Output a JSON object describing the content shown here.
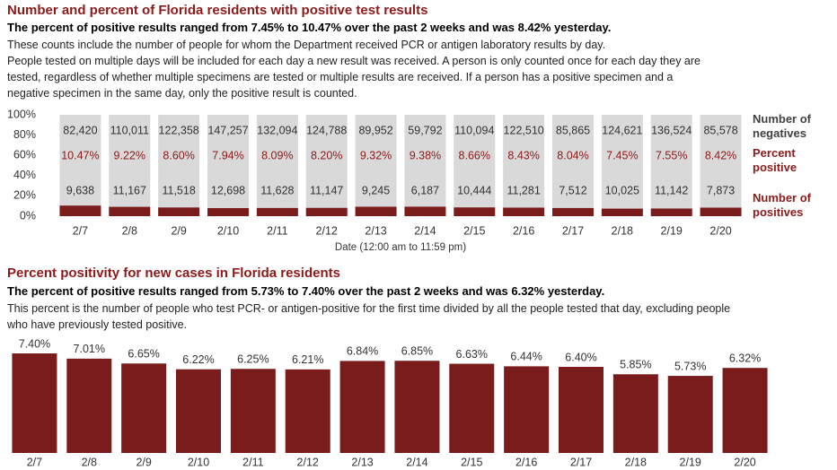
{
  "chart_data": [
    {
      "type": "stacked_percent_bar",
      "title": "Number and percent of Florida residents with positive test results",
      "subtitle": "The percent of positive results ranged from 7.45% to 10.47% over the past 2 weeks and was 8.42% yesterday.",
      "description": [
        "These counts include the number of people for whom the Department received PCR or antigen laboratory results by day.",
        "People tested on multiple days will be included for each day a new result was received. A person is only counted once for each day they are tested, regardless of whether multiple specimens are tested or multiple results are received. If a person has a positive specimen and a negative specimen in the same day, only the positive result is counted."
      ],
      "categories": [
        "2/7",
        "2/8",
        "2/9",
        "2/10",
        "2/11",
        "2/12",
        "2/13",
        "2/14",
        "2/15",
        "2/16",
        "2/17",
        "2/18",
        "2/19",
        "2/20"
      ],
      "x_label": "Date (12:00 am to 11:59 pm)",
      "ylim": [
        0,
        100
      ],
      "yticks": [
        {
          "value": 0,
          "label": "0%"
        },
        {
          "value": 20,
          "label": "20%"
        },
        {
          "value": 40,
          "label": "40%"
        },
        {
          "value": 60,
          "label": "60%"
        },
        {
          "value": 80,
          "label": "80%"
        },
        {
          "value": 100,
          "label": "100%"
        }
      ],
      "series": [
        {
          "name": "Number of negatives",
          "color": "#d9d9d9",
          "values": [
            82420,
            110011,
            122358,
            147257,
            132094,
            124788,
            89952,
            59792,
            110094,
            122510,
            85865,
            124621,
            136524,
            85578
          ],
          "value_labels": [
            "82,420",
            "110,011",
            "122,358",
            "147,257",
            "132,094",
            "124,788",
            "89,952",
            "59,792",
            "110,094",
            "122,510",
            "85,865",
            "124,621",
            "136,524",
            "85,578"
          ]
        },
        {
          "name": "Percent positive",
          "color": "#8b1a1a",
          "values": [
            10.47,
            9.22,
            8.6,
            7.94,
            8.09,
            8.2,
            9.32,
            9.38,
            8.66,
            8.43,
            8.04,
            7.45,
            7.55,
            8.42
          ],
          "value_labels": [
            "10.47%",
            "9.22%",
            "8.60%",
            "7.94%",
            "8.09%",
            "8.20%",
            "9.32%",
            "9.38%",
            "8.66%",
            "8.43%",
            "8.04%",
            "7.45%",
            "7.55%",
            "8.42%"
          ]
        },
        {
          "name": "Number of positives",
          "color": "#7b1c1c",
          "values": [
            9638,
            11167,
            11518,
            12698,
            11628,
            11147,
            9245,
            6187,
            10444,
            11281,
            7512,
            10025,
            11142,
            7873
          ],
          "value_labels": [
            "9,638",
            "11,167",
            "11,518",
            "12,698",
            "11,628",
            "11,147",
            "9,245",
            "6,187",
            "10,444",
            "11,281",
            "7,512",
            "10,025",
            "11,142",
            "7,873"
          ]
        }
      ]
    },
    {
      "type": "bar",
      "title": "Percent positivity for new cases in Florida residents",
      "subtitle": "The percent of positive results ranged from 5.73% to 7.40% over the past 2 weeks and was 6.32% yesterday.",
      "description": [
        "This percent is the number of people who test PCR- or antigen-positive for the first time divided by all the people tested that day, excluding people who have previously tested positive."
      ],
      "categories": [
        "2/7",
        "2/8",
        "2/9",
        "2/10",
        "2/11",
        "2/12",
        "2/13",
        "2/14",
        "2/15",
        "2/16",
        "2/17",
        "2/18",
        "2/19",
        "2/20"
      ],
      "values": [
        7.4,
        7.01,
        6.65,
        6.22,
        6.25,
        6.21,
        6.84,
        6.85,
        6.63,
        6.44,
        6.4,
        5.85,
        5.73,
        6.32
      ],
      "value_labels": [
        "7.40%",
        "7.01%",
        "6.65%",
        "6.22%",
        "6.25%",
        "6.21%",
        "6.84%",
        "6.85%",
        "6.63%",
        "6.44%",
        "6.40%",
        "5.85%",
        "5.73%",
        "6.32%"
      ],
      "color": "#7b1c1c"
    }
  ]
}
